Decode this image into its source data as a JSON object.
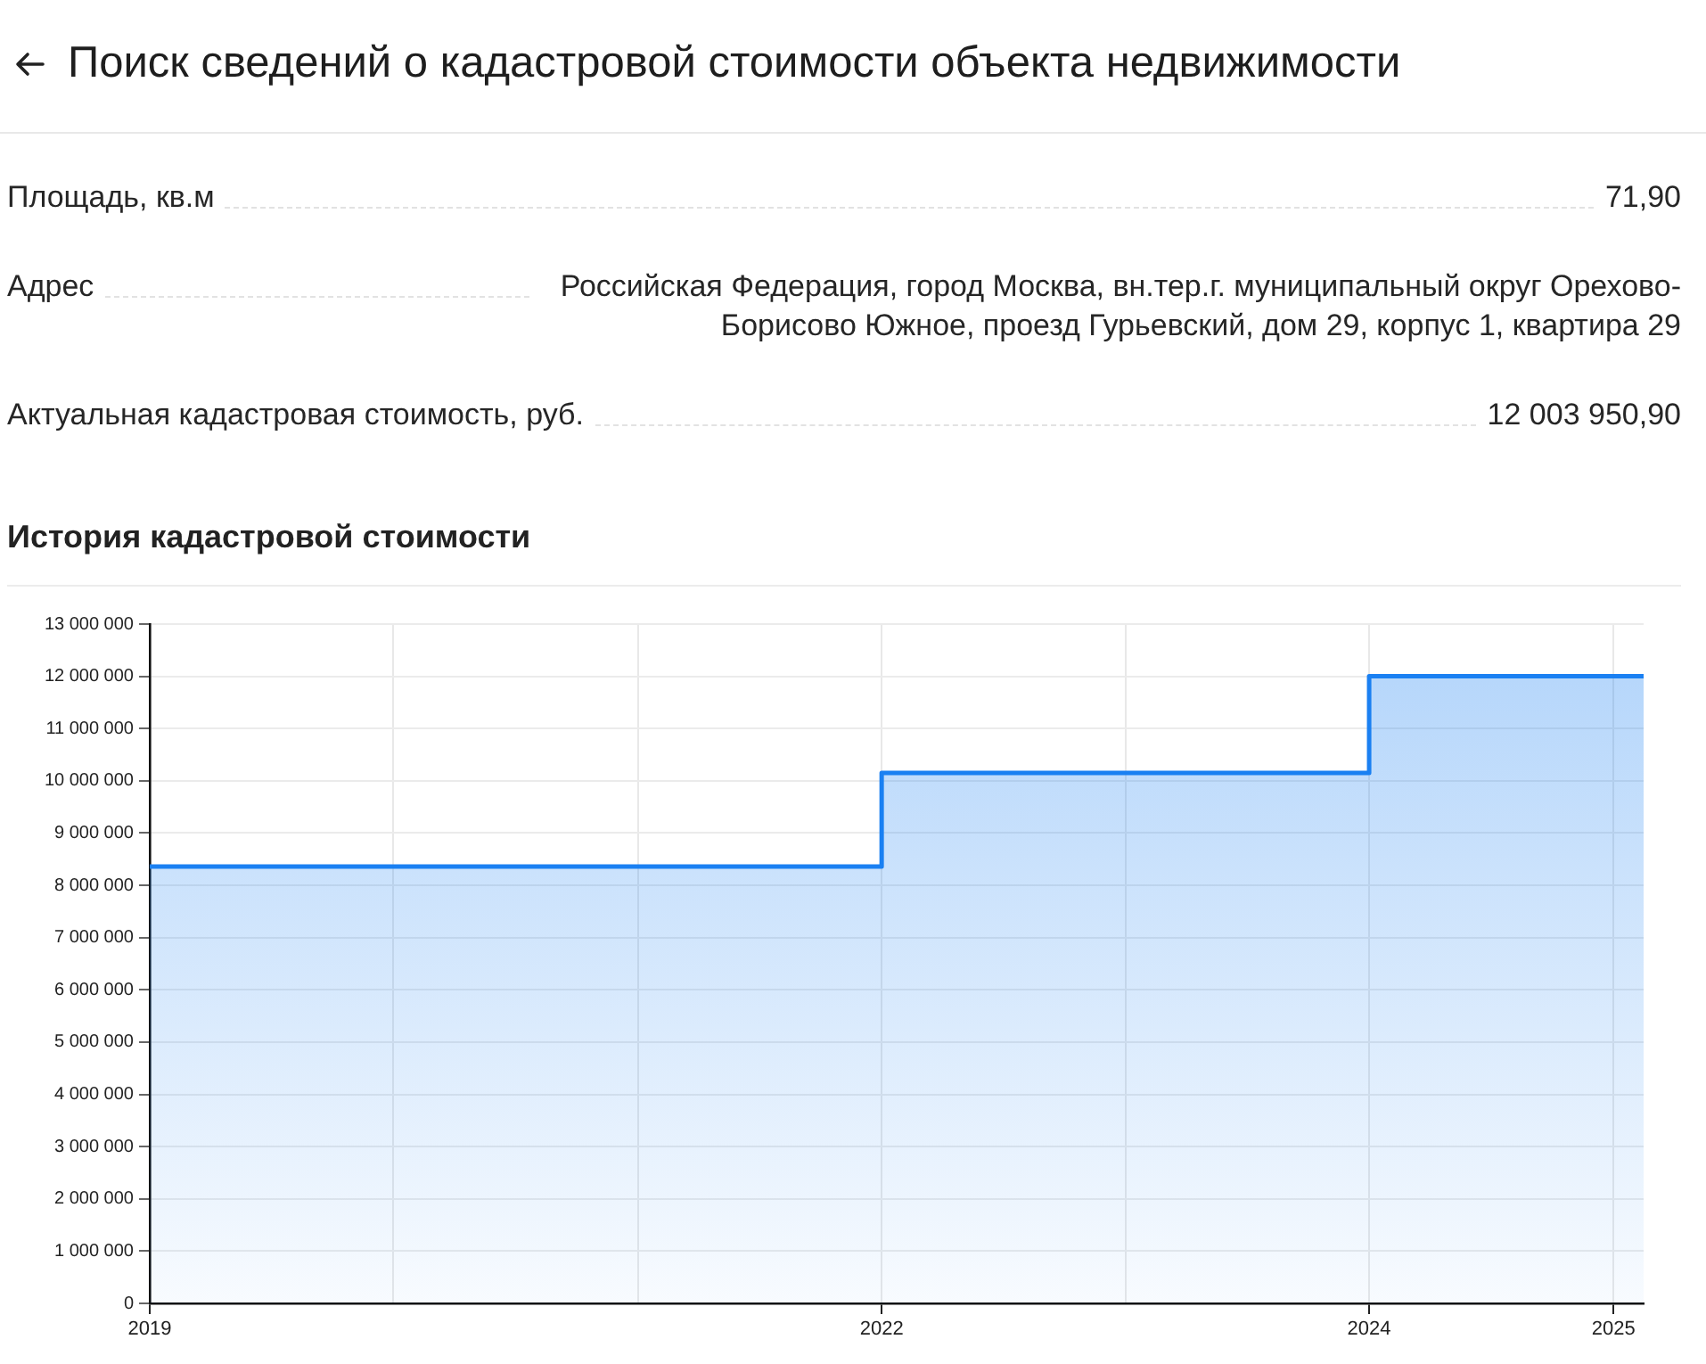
{
  "chart_data": {
    "type": "area",
    "title": "Поиск сведений о кадастровой стоимости объекта недвижимости",
    "subtitle": "История кадастровой стоимости",
    "annotations": [
      "Площадь, кв.м",
      "71,90",
      "Адрес",
      "Российская Федерация, город Москва, вн.тер.г. муниципальный округ Орехово-Борисово Южное, проезд Гурьевский, дом 29, корпус 1, квартира 29",
      "Актуальная кадастровая стоимость, руб.",
      "12 003 950,90"
    ],
    "x": [
      "2019",
      "2022",
      "2022",
      "2024",
      "2024",
      "2025-02-15"
    ],
    "series": [
      {
        "color": "#1a80f2",
        "values": [
          8360000,
          8360000,
          10150000,
          10150000,
          12000000,
          12000000
        ]
      }
    ],
    "xlim": [
      "2019",
      "2025-02-15"
    ],
    "xticks": [
      "2019",
      {
        "value": "2020",
        "label": null
      },
      {
        "value": "2021",
        "label": null
      },
      "2022",
      {
        "value": "2023",
        "label": null
      },
      "2024",
      "2025"
    ],
    "ylim": [
      0,
      13000000
    ],
    "yticks": [
      0,
      {
        "value": 1000000,
        "label": "1 000 000"
      },
      {
        "value": 2000000,
        "label": "2 000 000"
      },
      {
        "value": 3000000,
        "label": "3 000 000"
      },
      {
        "value": 4000000,
        "label": "4 000 000"
      },
      {
        "value": 5000000,
        "label": "5 000 000"
      },
      {
        "value": 6000000,
        "label": "6 000 000"
      },
      {
        "value": 7000000,
        "label": "7 000 000"
      },
      {
        "value": 8000000,
        "label": "8 000 000"
      },
      {
        "value": 9000000,
        "label": "9 000 000"
      },
      {
        "value": 10000000,
        "label": "10 000 000"
      },
      {
        "value": 11000000,
        "label": "11 000 000"
      },
      {
        "value": 12000000,
        "label": "12 000 000"
      },
      {
        "value": 13000000,
        "label": "13 000 000"
      }
    ],
    "grid": true,
    "marker": "none",
    "line_style": "solid",
    "legend": false
  }
}
